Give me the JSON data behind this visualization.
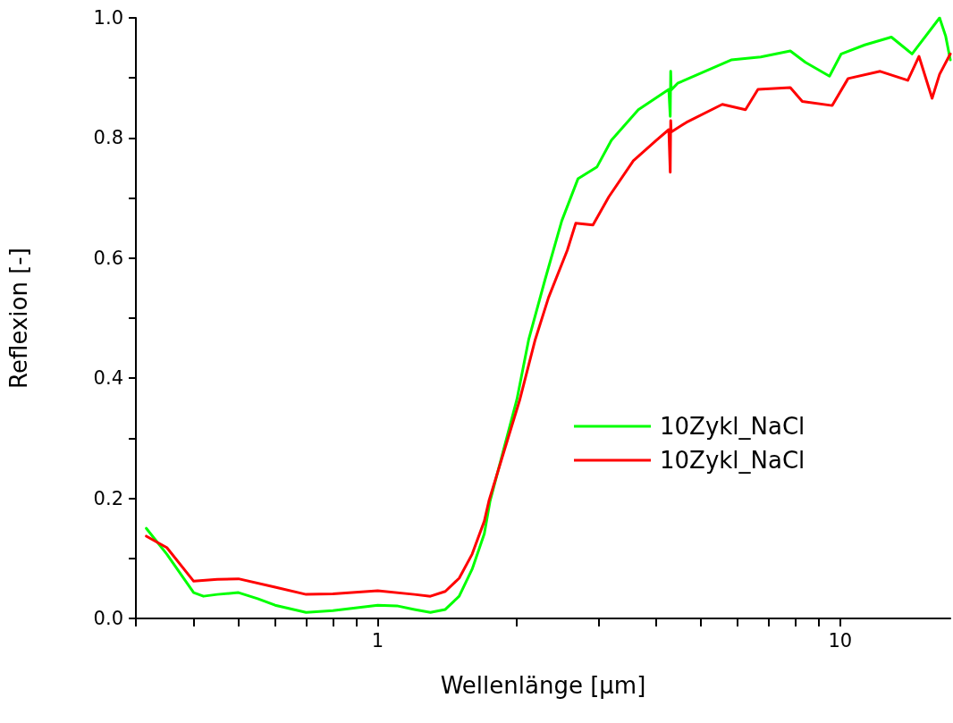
{
  "chart_data": {
    "type": "line",
    "xlabel": "Wellenlänge [µm]",
    "ylabel": "Reflexion [-]",
    "log": "x",
    "xlim": [
      0.3,
      17.3
    ],
    "ylim": [
      0,
      1
    ],
    "xticks": [
      {
        "value": 0.3,
        "label": null
      },
      {
        "value": 0.4,
        "label": null
      },
      {
        "value": 0.5,
        "label": null
      },
      {
        "value": 0.6,
        "label": null
      },
      {
        "value": 0.7,
        "label": null
      },
      {
        "value": 0.8,
        "label": null
      },
      {
        "value": 0.9,
        "label": null
      },
      1,
      {
        "value": 2,
        "label": null
      },
      {
        "value": 3,
        "label": null
      },
      {
        "value": 4,
        "label": null
      },
      {
        "value": 5,
        "label": null
      },
      {
        "value": 6,
        "label": null
      },
      {
        "value": 7,
        "label": null
      },
      {
        "value": 8,
        "label": null
      },
      {
        "value": 9,
        "label": null
      },
      10
    ],
    "yticks": [
      {
        "value": 0,
        "label": "0.0"
      },
      {
        "value": 0.1,
        "label": null
      },
      0.2,
      {
        "value": 0.3,
        "label": null
      },
      0.4,
      {
        "value": 0.5,
        "label": null
      },
      0.6,
      {
        "value": 0.7,
        "label": null
      },
      0.8,
      {
        "value": 0.9,
        "label": null
      },
      {
        "value": 1,
        "label": "1.0"
      }
    ],
    "grid": false,
    "legend": "right",
    "line_style": "solid",
    "marker": "none",
    "series": [
      {
        "name": "10Zykl_NaCl",
        "color": "#00ff00",
        "x": [
          0.316,
          0.35,
          0.4,
          0.42,
          0.45,
          0.5,
          0.55,
          0.6,
          0.7,
          0.8,
          1.0,
          1.1,
          1.2,
          1.3,
          1.4,
          1.5,
          1.6,
          1.7,
          1.75,
          2.0,
          2.12,
          2.3,
          2.5,
          2.71,
          2.98,
          3.2,
          3.66,
          4.26,
          4.29,
          4.3,
          4.31,
          4.45,
          5.81,
          6.73,
          7.8,
          8.41,
          9.48,
          10.05,
          11.3,
          12.9,
          14.3,
          16.4,
          16.9,
          17.3
        ],
        "values": [
          0.15,
          0.107,
          0.043,
          0.037,
          0.04,
          0.043,
          0.033,
          0.022,
          0.01,
          0.013,
          0.022,
          0.021,
          0.015,
          0.01,
          0.015,
          0.037,
          0.082,
          0.141,
          0.196,
          0.365,
          0.464,
          0.564,
          0.662,
          0.732,
          0.752,
          0.796,
          0.847,
          0.881,
          0.836,
          0.911,
          0.88,
          0.891,
          0.93,
          0.935,
          0.945,
          0.926,
          0.903,
          0.94,
          0.955,
          0.968,
          0.94,
          1.0,
          0.97,
          0.93
        ]
      },
      {
        "name": "10Zykl_NaCl",
        "color": "#ff0000",
        "x": [
          0.316,
          0.35,
          0.4,
          0.45,
          0.5,
          0.6,
          0.7,
          0.8,
          1.0,
          1.2,
          1.3,
          1.4,
          1.5,
          1.6,
          1.7,
          1.74,
          2.03,
          2.19,
          2.34,
          2.57,
          2.68,
          2.92,
          3.16,
          3.57,
          4.0,
          4.26,
          4.29,
          4.3,
          4.31,
          4.65,
          5.56,
          6.24,
          6.64,
          7.8,
          8.28,
          9.61,
          10.4,
          12.2,
          14.0,
          14.8,
          15.8,
          16.4,
          17.3
        ],
        "values": [
          0.137,
          0.118,
          0.062,
          0.065,
          0.066,
          0.052,
          0.04,
          0.041,
          0.046,
          0.04,
          0.037,
          0.045,
          0.067,
          0.107,
          0.162,
          0.196,
          0.365,
          0.464,
          0.534,
          0.613,
          0.658,
          0.655,
          0.702,
          0.762,
          0.796,
          0.814,
          0.743,
          0.829,
          0.81,
          0.826,
          0.856,
          0.847,
          0.881,
          0.884,
          0.861,
          0.854,
          0.899,
          0.911,
          0.896,
          0.936,
          0.866,
          0.906,
          0.94
        ]
      }
    ]
  }
}
